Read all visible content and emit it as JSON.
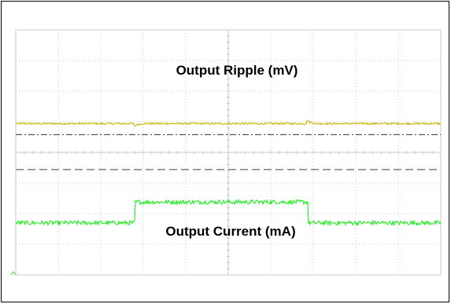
{
  "chart_data": {
    "type": "line",
    "x_divisions": 10,
    "y_divisions": 8,
    "grid": true,
    "background": "#ffffff",
    "grid_color": "#c8c8c8",
    "x_segment_boundaries": [
      0,
      3.6,
      8.8,
      12.8
    ],
    "series": [
      {
        "name": "Output Ripple (mV)",
        "color": "#c8b400",
        "baseline_div": 4.94,
        "segment_levels": [
          4.94,
          4.94,
          4.94
        ],
        "noise_div": 0.03
      },
      {
        "name": "Output Current (mA)",
        "color": "#22ee22",
        "baseline_div": 1.7,
        "segment_levels": [
          1.7,
          2.38,
          1.7
        ],
        "noise_div": 0.07
      }
    ],
    "reference_lines": [
      {
        "style": "dash-dot",
        "color": "#333333",
        "level_div": 4.58
      },
      {
        "style": "dashed",
        "color": "#888888",
        "level_div": 3.44
      }
    ],
    "annotations": [
      {
        "text": "Output Ripple (mV)"
      },
      {
        "text": "Output Current (mA)"
      }
    ]
  }
}
